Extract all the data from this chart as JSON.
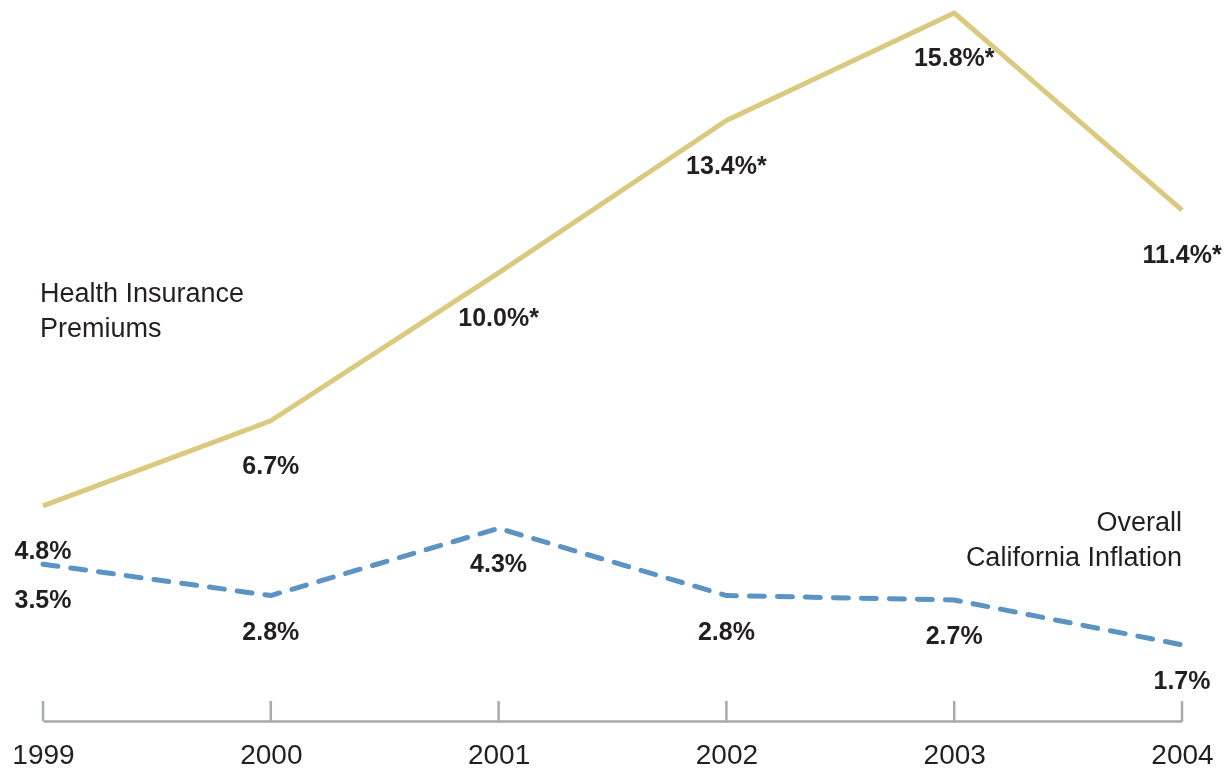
{
  "chart_data": {
    "type": "line",
    "categories": [
      "1999",
      "2000",
      "2001",
      "2002",
      "2003",
      "2004"
    ],
    "tick_labels": "x",
    "series": [
      {
        "name": "Health Insurance\nPremiums",
        "color": "#d9ca80",
        "line_style": "solid",
        "values": [
          4.8,
          6.7,
          10.0,
          13.4,
          15.8,
          11.4
        ],
        "value_labels": [
          "4.8%",
          "6.7%",
          "10.0%*",
          "13.4%*",
          "15.8%*",
          "11.4%*"
        ]
      },
      {
        "name": "Overall\nCalifornia Inflation",
        "color": "#5b93c3",
        "line_style": "dashed",
        "values": [
          3.5,
          2.8,
          4.3,
          2.8,
          2.7,
          1.7
        ],
        "value_labels": [
          "3.5%",
          "2.8%",
          "4.3%",
          "2.8%",
          "2.7%",
          "1.7%"
        ]
      }
    ]
  }
}
